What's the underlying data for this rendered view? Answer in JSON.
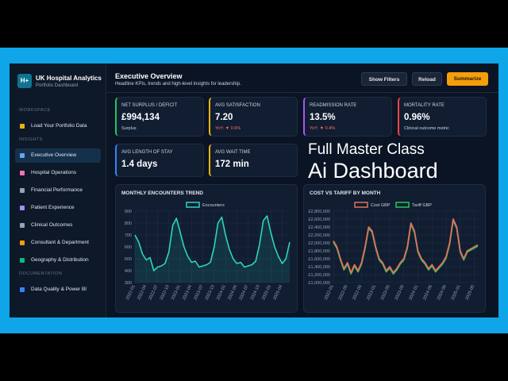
{
  "sidebar": {
    "logo": "H+",
    "title": "UK Hospital Analytics",
    "subtitle": "Portfolio Dashboard",
    "sections": [
      {
        "heading": "WORKSPACE",
        "items": [
          {
            "label": "Load Your Portfolio Data",
            "icon": "#eab308"
          }
        ]
      },
      {
        "heading": "INSIGHTS",
        "items": [
          {
            "label": "Executive Overview",
            "icon": "#60a5fa",
            "active": true
          },
          {
            "label": "Hospital Operations",
            "icon": "#f472b6"
          },
          {
            "label": "Financial Performance",
            "icon": "#94a3b8"
          },
          {
            "label": "Patient Experience",
            "icon": "#a78bfa"
          },
          {
            "label": "Clinical Outcomes",
            "icon": "#94a3b8"
          },
          {
            "label": "Consultant & Department",
            "icon": "#f59e0b"
          },
          {
            "label": "Geography & Distribution",
            "icon": "#10b981"
          }
        ]
      },
      {
        "heading": "DOCUMENTATION",
        "items": [
          {
            "label": "Data Quality & Power BI",
            "icon": "#3b82f6"
          }
        ]
      }
    ]
  },
  "header": {
    "title": "Executive Overview",
    "subtitle": "Headline KPIs, trends and high-level insights for leadership.",
    "buttons": [
      {
        "label": "Show Filters",
        "primary": false
      },
      {
        "label": "Reload",
        "primary": false
      },
      {
        "label": "Summarize",
        "primary": true
      }
    ]
  },
  "kpis": [
    {
      "label": "NET SURPLUS / DEFICIT",
      "value": "£994,134",
      "note": "Surplus",
      "color": "#22c55e"
    },
    {
      "label": "AVG SATISFACTION",
      "value": "7.20",
      "note": "YoY: ▼ 0.6%",
      "color": "#eab308"
    },
    {
      "label": "READMISSION RATE",
      "value": "13.5%",
      "note": "YoY: ▼ 0.4%",
      "color": "#a855f7"
    },
    {
      "label": "MORTALITY RATE",
      "value": "0.96%",
      "note": "Clinical outcome metric",
      "color": "#ef4444"
    },
    {
      "label": "AVG LENGTH OF STAY",
      "value": "1.4 days",
      "color": "#3b82f6"
    },
    {
      "label": "AVG WAIT TIME",
      "value": "172 min",
      "color": "#eab308"
    }
  ],
  "overlay": [
    "Full Master Class",
    "Ai Dashboard"
  ],
  "chart_data": [
    {
      "type": "line",
      "title": "MONTHLY ENCOUNTERS TREND",
      "grid": true,
      "categories": [
        "2022-01",
        null,
        null,
        "2022-04",
        null,
        null,
        "2022-07",
        null,
        null,
        "2022-10",
        null,
        null,
        "2023-01",
        null,
        null,
        "2023-04",
        null,
        null,
        "2023-07",
        null,
        null,
        "2023-10",
        null,
        null,
        "2024-01",
        null,
        null,
        "2024-04",
        null,
        null,
        "2024-07",
        null,
        null,
        "2024-10",
        null,
        null,
        "2025-01",
        null,
        null,
        "2025-04",
        null,
        null
      ],
      "series": [
        {
          "name": "Encounters",
          "color": "#2dd4bf",
          "values": [
            700,
            640,
            540,
            490,
            510,
            400,
            430,
            440,
            460,
            560,
            780,
            840,
            720,
            600,
            520,
            470,
            480,
            430,
            440,
            450,
            470,
            600,
            800,
            850,
            700,
            580,
            500,
            460,
            470,
            430,
            440,
            450,
            480,
            620,
            820,
            860,
            720,
            600,
            520,
            460,
            500,
            640
          ]
        }
      ],
      "ylim": [
        300,
        900
      ],
      "yticks": [
        300,
        400,
        500,
        600,
        700,
        800,
        900
      ]
    },
    {
      "type": "line",
      "title": "COST VS TARIFF BY MONTH",
      "grid": true,
      "categories": [
        "2022-01",
        null,
        null,
        null,
        "2022-05",
        null,
        null,
        null,
        "2022-09",
        null,
        null,
        null,
        "2023-01",
        null,
        null,
        null,
        "2023-05",
        null,
        null,
        null,
        "2023-09",
        null,
        null,
        null,
        "2024-01",
        null,
        null,
        null,
        "2024-05",
        null,
        null,
        null,
        "2024-09",
        null,
        null,
        null,
        "2025-01",
        null,
        null,
        null,
        "2025-05",
        null
      ],
      "series": [
        {
          "name": "Cost GBP",
          "color": "#e0705a",
          "values": [
            2050000,
            1900000,
            1600000,
            1350000,
            1500000,
            1250000,
            1450000,
            1300000,
            1500000,
            1900000,
            2400000,
            2300000,
            1900000,
            1600000,
            1500000,
            1300000,
            1400000,
            1250000,
            1350000,
            1500000,
            1600000,
            1900000,
            2500000,
            2300000,
            1800000,
            1600000,
            1500000,
            1350000,
            1450000,
            1300000,
            1400000,
            1500000,
            1650000,
            2000000,
            2600000,
            2400000,
            1800000,
            1600000,
            1800000,
            1850000,
            1900000,
            1950000
          ]
        },
        {
          "name": "Tariff GBP",
          "color": "#22c55e",
          "values": [
            2020000,
            1870000,
            1570000,
            1320000,
            1470000,
            1220000,
            1420000,
            1270000,
            1470000,
            1870000,
            2370000,
            2270000,
            1870000,
            1570000,
            1470000,
            1270000,
            1370000,
            1220000,
            1320000,
            1470000,
            1570000,
            1870000,
            2470000,
            2270000,
            1770000,
            1570000,
            1470000,
            1320000,
            1420000,
            1270000,
            1370000,
            1470000,
            1620000,
            1970000,
            2570000,
            2370000,
            1770000,
            1570000,
            1770000,
            1820000,
            1870000,
            1920000
          ]
        }
      ],
      "ylim": [
        1000000,
        2800000
      ],
      "yticks": [
        {
          "value": 1000000,
          "label": "£1,000,000"
        },
        {
          "value": 1200000,
          "label": "£1,200,000"
        },
        {
          "value": 1400000,
          "label": "£1,400,000"
        },
        {
          "value": 1600000,
          "label": "£1,600,000"
        },
        {
          "value": 1800000,
          "label": "£1,800,000"
        },
        {
          "value": 2000000,
          "label": "£2,000,000"
        },
        {
          "value": 2200000,
          "label": "£2,200,000"
        },
        {
          "value": 2400000,
          "label": "£2,400,000"
        },
        {
          "value": 2600000,
          "label": "£2,600,000"
        },
        {
          "value": 2800000,
          "label": "£2,800,000"
        }
      ]
    }
  ]
}
